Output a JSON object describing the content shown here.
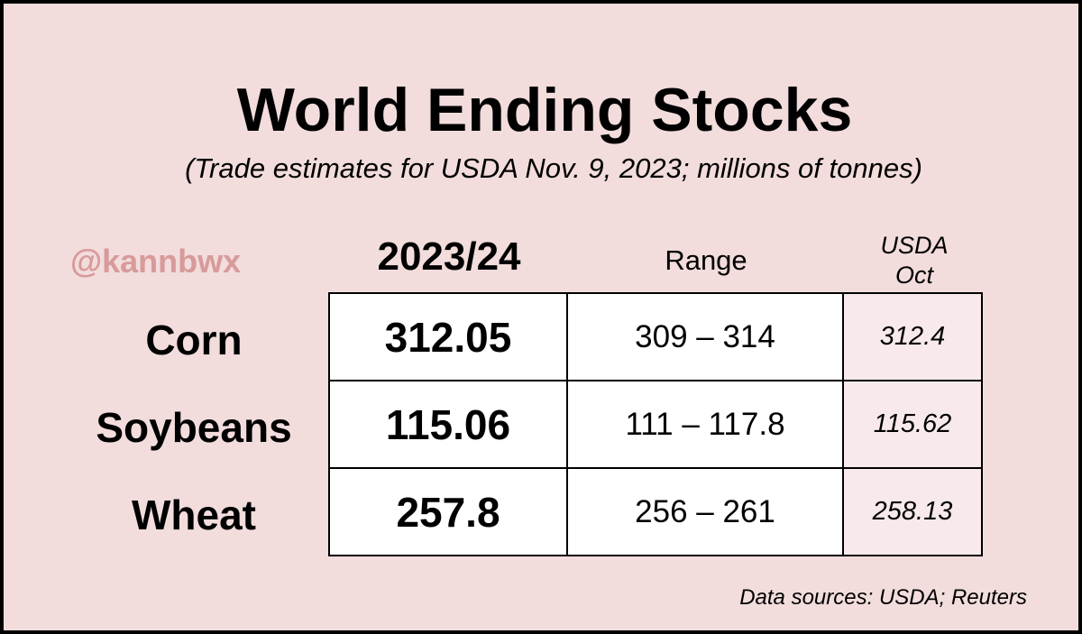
{
  "chart_data": {
    "type": "table",
    "title": "World Ending Stocks",
    "subtitle": "(Trade estimates for USDA Nov. 9, 2023; millions of tonnes)",
    "watermark": "@kannbwx",
    "columns": {
      "estimate": "2023/24",
      "range": "Range",
      "usda_line1": "USDA",
      "usda_line2": "Oct"
    },
    "rows": [
      {
        "commodity": "Corn",
        "estimate": "312.05",
        "range": "309 – 314",
        "usda_oct": "312.4"
      },
      {
        "commodity": "Soybeans",
        "estimate": "115.06",
        "range": "111 – 117.8",
        "usda_oct": "115.62"
      },
      {
        "commodity": "Wheat",
        "estimate": "257.8",
        "range": "256 – 261",
        "usda_oct": "258.13"
      }
    ],
    "source": "Data sources: USDA; Reuters"
  },
  "colors": {
    "background": "#f2dcdc",
    "border": "#000000",
    "watermark": "#d89a9a",
    "usda_cell": "#f8eaea",
    "cell": "#ffffff"
  }
}
